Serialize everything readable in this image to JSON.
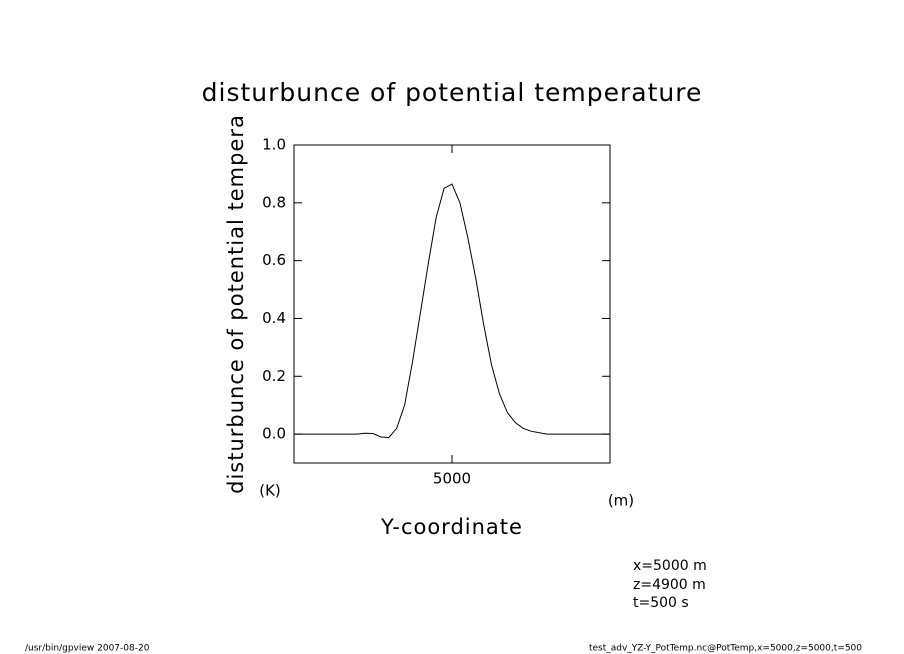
{
  "chart_data": {
    "type": "line",
    "title": "disturbunce of potential temperature",
    "y_label": "disturbunce of potential tempera",
    "y_unit": "(K)",
    "x_label": "Y-coordinate",
    "x_unit": "(m)",
    "annotations": [
      "x=5000 m",
      "z=4900 m",
      "t=500 s"
    ],
    "footer_left": "/usr/bin/gpview   2007-08-20",
    "footer_right": "test_adv_YZ-Y_PotTemp.nc@PotTemp,x=5000,z=5000,t=500",
    "x": [
      0,
      1000,
      2000,
      2250,
      2500,
      2750,
      3000,
      3250,
      3500,
      3750,
      4000,
      4250,
      4500,
      4750,
      5000,
      5250,
      5500,
      5750,
      6000,
      6250,
      6500,
      6750,
      7000,
      7250,
      7500,
      8000,
      9000,
      10000
    ],
    "series": [
      {
        "color": "#000000",
        "values": [
          0,
          0,
          0,
          0.003,
          0.002,
          -0.01,
          -0.012,
          0.02,
          0.1,
          0.25,
          0.42,
          0.59,
          0.75,
          0.85,
          0.865,
          0.8,
          0.68,
          0.54,
          0.38,
          0.24,
          0.14,
          0.075,
          0.04,
          0.02,
          0.01,
          0,
          0,
          0
        ]
      }
    ],
    "xlim": [
      0,
      10000
    ],
    "xticks": [
      5000
    ],
    "ylim": [
      -0.1,
      1.0
    ],
    "yticks": [
      {
        "value": 0,
        "label": "0.0"
      },
      0.2,
      0.4,
      0.6,
      0.8,
      {
        "value": 1,
        "label": "1.0"
      }
    ]
  }
}
